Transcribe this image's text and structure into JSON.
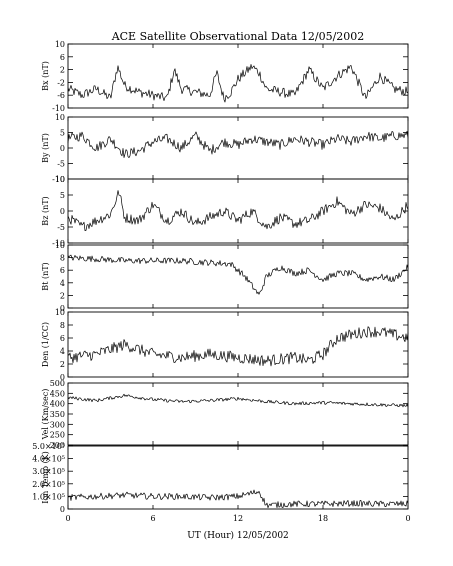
{
  "title": "ACE Satellite Observational Data   12/05/2002",
  "x_axis_label": "UT (Hour)  12/05/2002",
  "chart_data": {
    "type": "line",
    "title": "ACE Satellite Observational Data   12/05/2002",
    "xlabel": "UT (Hour)  12/05/2002",
    "x_ticks": [
      "0",
      "6",
      "12",
      "18",
      "0"
    ],
    "xlim": [
      0,
      24
    ],
    "panels": [
      {
        "ylabel": "Bx (nT)",
        "ylim": [
          -10,
          10
        ],
        "y_ticks": [
          "10",
          "6",
          "2",
          "-2",
          "-6",
          "-10"
        ],
        "y_tick_values": [
          10,
          6,
          2,
          -2,
          -6,
          -10
        ],
        "x": [
          0,
          1,
          2,
          3,
          3.5,
          4,
          5,
          6,
          7,
          7.5,
          8,
          9,
          10,
          10.5,
          11,
          11.5,
          12,
          13,
          13.5,
          14,
          15,
          16,
          17,
          18,
          19,
          20,
          21,
          22,
          23,
          24
        ],
        "values": [
          -4,
          -6,
          -4,
          -7,
          3,
          -3,
          -5,
          -6,
          -7,
          2,
          -4,
          -5,
          -6,
          1,
          -7,
          -5,
          -1,
          3,
          1,
          -4,
          -5,
          -6,
          2,
          -4,
          0,
          3,
          -7,
          0,
          -4,
          -5
        ],
        "noise": 1.5
      },
      {
        "ylabel": "By (nT)",
        "ylim": [
          -10,
          10
        ],
        "y_ticks": [
          "10",
          "5",
          "0",
          "-5",
          "-10"
        ],
        "y_tick_values": [
          10,
          5,
          0,
          -5,
          -10
        ],
        "x": [
          0,
          1,
          2,
          3,
          4,
          5,
          6,
          7,
          8,
          9,
          10,
          11,
          12,
          13,
          14,
          15,
          16,
          17,
          18,
          19,
          20,
          21,
          22,
          23,
          24
        ],
        "values": [
          3,
          4,
          0,
          3,
          -2,
          -1,
          2,
          3,
          0,
          4,
          -1,
          2,
          1,
          3,
          2,
          1,
          3,
          2,
          1,
          3,
          2,
          4,
          3,
          4,
          4
        ],
        "noise": 1.6
      },
      {
        "ylabel": "Bz (nT)",
        "ylim": [
          -10,
          10
        ],
        "y_ticks": [
          "10",
          "5",
          "0",
          "-5",
          "-10"
        ],
        "y_tick_values": [
          10,
          5,
          0,
          -5,
          -10
        ],
        "x": [
          0,
          1,
          2,
          3,
          3.6,
          4,
          5,
          6,
          7,
          8,
          9,
          10,
          11,
          12,
          13,
          14,
          15,
          16,
          17,
          18,
          19,
          20,
          21,
          22,
          23,
          24
        ],
        "values": [
          -2,
          -5,
          -3,
          -1,
          6,
          -2,
          -3,
          2,
          -3,
          0,
          -4,
          -2,
          0,
          -3,
          0,
          -5,
          -2,
          -4,
          -3,
          0,
          3,
          -1,
          2,
          1,
          -3,
          2
        ],
        "noise": 1.6
      },
      {
        "ylabel": "Bt (nT)",
        "ylim": [
          0,
          10
        ],
        "y_ticks": [
          "10",
          "8",
          "6",
          "4",
          "2",
          "0"
        ],
        "y_tick_values": [
          10,
          8,
          6,
          4,
          2,
          0
        ],
        "x": [
          0,
          2,
          4,
          6,
          8,
          10,
          11.5,
          12.5,
          13,
          13.5,
          14,
          15,
          16,
          17,
          18,
          19,
          20,
          21,
          22,
          23,
          24
        ],
        "values": [
          8,
          7.8,
          7.5,
          7.5,
          7.5,
          7.2,
          7,
          5,
          3.5,
          2,
          5,
          6.5,
          5.5,
          6,
          4.5,
          5.5,
          5.5,
          4.5,
          5,
          4.5,
          6.5
        ],
        "noise": 0.5
      },
      {
        "ylabel": "Den (1/CC)",
        "ylim": [
          0,
          10
        ],
        "y_ticks": [
          "10",
          "8",
          "6",
          "4",
          "2",
          "0"
        ],
        "y_tick_values": [
          10,
          8,
          6,
          4,
          2,
          0
        ],
        "x": [
          0,
          2,
          4,
          6,
          8,
          10,
          12,
          14,
          16,
          17,
          18,
          19,
          20,
          21,
          22,
          23,
          24
        ],
        "values": [
          3,
          3.5,
          5,
          3.5,
          3,
          3.5,
          3,
          2.5,
          3,
          2.5,
          3.5,
          6,
          6.5,
          7,
          7,
          6.5,
          6
        ],
        "noise": 0.9
      },
      {
        "ylabel": "Vel (Km/sec)",
        "ylim": [
          200,
          500
        ],
        "y_ticks": [
          "500",
          "450",
          "400",
          "350",
          "300",
          "250",
          "200"
        ],
        "y_tick_values": [
          500,
          450,
          400,
          350,
          300,
          250,
          200
        ],
        "x": [
          0,
          2,
          4,
          6,
          8,
          10,
          12,
          14,
          16,
          18,
          20,
          22,
          24
        ],
        "values": [
          430,
          415,
          440,
          420,
          410,
          415,
          425,
          410,
          400,
          405,
          400,
          395,
          390
        ],
        "noise": 8
      },
      {
        "ylabel": "Ion Temp (K)",
        "ylim": [
          0,
          500000
        ],
        "y_ticks": [
          "5.0×10⁵",
          "4.0×10⁵",
          "3.0×10⁵",
          "2.0×10⁵",
          "1.0×10⁵",
          "0"
        ],
        "y_tick_values": [
          500000,
          400000,
          300000,
          200000,
          100000,
          0
        ],
        "x": [
          0,
          2,
          4,
          6,
          8,
          10,
          12,
          13.5,
          14,
          16,
          18,
          20,
          22,
          24
        ],
        "values": [
          90000,
          100000,
          110000,
          100000,
          100000,
          90000,
          100000,
          140000,
          30000,
          40000,
          40000,
          45000,
          40000,
          40000
        ],
        "noise": 25000
      }
    ]
  }
}
